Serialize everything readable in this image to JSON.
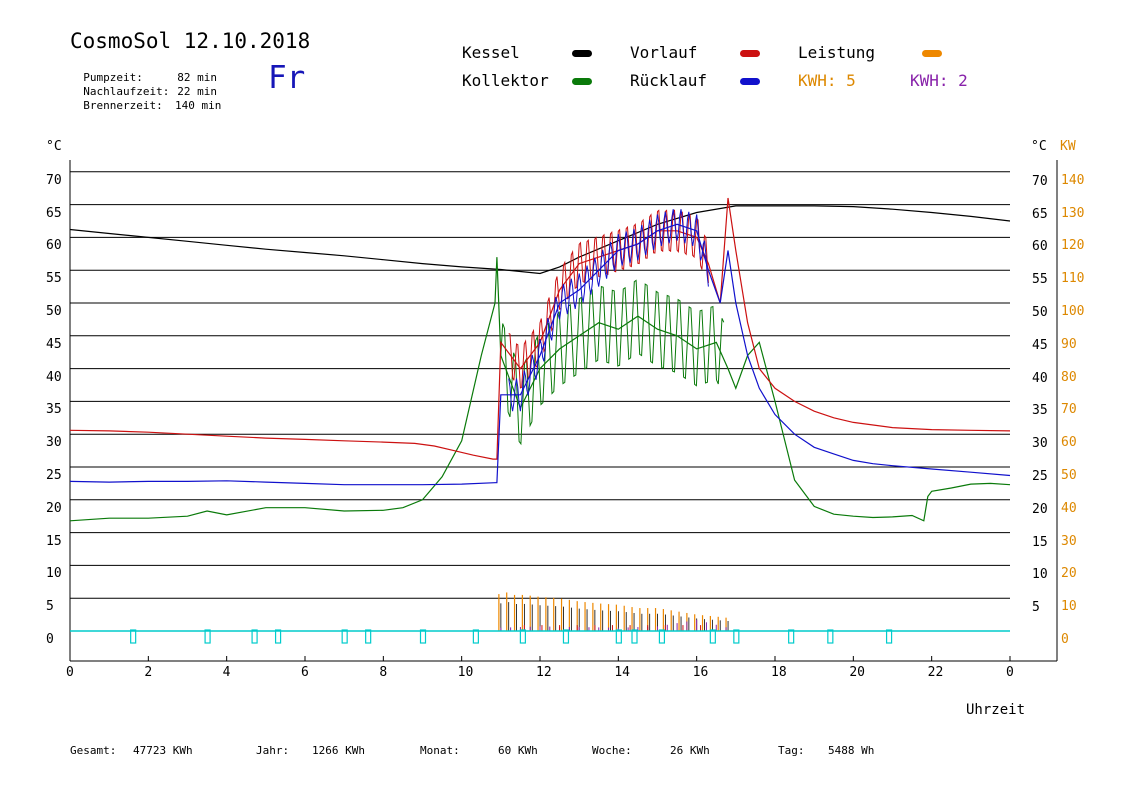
{
  "header": {
    "title": "CosmoSol 12.10.2018",
    "day": "Fr",
    "info": [
      {
        "label": "Pumpzeit:",
        "value": "82 min"
      },
      {
        "label": "Nachlaufzeit:",
        "value": "22 min"
      },
      {
        "label": "Brennerzeit:",
        "value": "140 min"
      }
    ]
  },
  "legend": {
    "kessel": "Kessel",
    "kollektor": "Kollektor",
    "vorlauf": "Vorlauf",
    "ruecklauf": "Rücklauf",
    "leistung": "Leistung",
    "kwh_orange": "KWH: 5",
    "kwh_purple": "KWH: 2"
  },
  "footer": {
    "gesamt_label": "Gesamt:",
    "gesamt_value": "47723 KWh",
    "jahr_label": "Jahr:",
    "jahr_value": "1266 KWh",
    "monat_label": "Monat:",
    "monat_value": "60 KWh",
    "woche_label": "Woche:",
    "woche_value": "26 KWh",
    "tag_label": "Tag:",
    "tag_value": "5488 Wh"
  },
  "colors": {
    "kessel": "#000000",
    "kollektor": "#0a7a0a",
    "vorlauf": "#cc1111",
    "ruecklauf": "#1111cc",
    "leistung": "#ee8800",
    "kwh_purple": "#8822aa",
    "pump": "#00cccc",
    "axis_orange": "#dd8800"
  },
  "chart_data": {
    "type": "line",
    "xlabel": "Uhrzeit",
    "ylabel_left": "°C",
    "ylabel_right": "°C",
    "ylabel_right2": "KW",
    "xlim": [
      0,
      24
    ],
    "ylim": [
      0,
      72
    ],
    "x_tick_labels": [
      "0",
      "2",
      "4",
      "6",
      "8",
      "10",
      "12",
      "14",
      "16",
      "18",
      "20",
      "22",
      "0"
    ],
    "y_ticks_left": [
      0,
      5,
      10,
      15,
      20,
      25,
      30,
      35,
      40,
      45,
      50,
      55,
      60,
      65,
      70
    ],
    "y_ticks_right": [
      5,
      10,
      15,
      20,
      25,
      30,
      35,
      40,
      45,
      50,
      55,
      60,
      65,
      70
    ],
    "y_ticks_right_kw": [
      0,
      10,
      20,
      30,
      40,
      50,
      60,
      70,
      80,
      90,
      100,
      110,
      120,
      130,
      140
    ],
    "series": [
      {
        "name": "Kessel",
        "color": "#000000",
        "x": [
          0,
          1,
          2,
          3,
          4,
          5,
          6,
          7,
          8,
          9,
          10,
          11,
          12,
          12.5,
          13,
          14,
          15,
          16,
          17,
          18,
          19,
          20,
          21,
          22,
          23,
          24
        ],
        "y": [
          61.2,
          60.6,
          60.0,
          59.4,
          58.8,
          58.2,
          57.7,
          57.2,
          56.6,
          56.0,
          55.5,
          55.1,
          54.5,
          55.5,
          57,
          59.5,
          62,
          63.8,
          64.8,
          64.8,
          64.8,
          64.7,
          64.3,
          63.8,
          63.2,
          62.5
        ]
      },
      {
        "name": "Vorlauf",
        "color": "#cc1111",
        "x": [
          0,
          1,
          2,
          3,
          4,
          5,
          6,
          7,
          8,
          8.8,
          9.3,
          9.8,
          10.3,
          10.8,
          10.9,
          11,
          11.5,
          12,
          12.5,
          13,
          13.5,
          14,
          14.5,
          15,
          15.5,
          16,
          16.3,
          16.6,
          16.8,
          17,
          17.3,
          17.6,
          18,
          18.5,
          19,
          19.5,
          20,
          21,
          22,
          23,
          24
        ],
        "y": [
          30.6,
          30.5,
          30.3,
          30.0,
          29.7,
          29.4,
          29.2,
          29.0,
          28.8,
          28.6,
          28.2,
          27.5,
          26.8,
          26.2,
          26.2,
          44,
          40,
          44,
          52,
          56,
          57,
          58,
          59,
          61,
          61,
          60,
          56,
          50,
          66,
          58,
          47,
          40,
          37,
          35,
          33.5,
          32.5,
          31.8,
          31.0,
          30.7,
          30.6,
          30.5
        ]
      },
      {
        "name": "Rücklauf",
        "color": "#1111cc",
        "x": [
          0,
          1,
          2,
          3,
          4,
          5,
          6,
          7,
          8,
          9,
          10,
          10.85,
          10.9,
          11,
          11.5,
          12,
          12.5,
          13,
          13.5,
          14,
          14.5,
          15,
          15.5,
          16,
          16.3,
          16.6,
          16.8,
          17,
          17.3,
          17.6,
          18,
          18.5,
          19,
          19.5,
          20,
          20.5,
          21,
          22,
          23,
          24
        ],
        "y": [
          22.8,
          22.7,
          22.8,
          22.8,
          22.9,
          22.7,
          22.5,
          22.3,
          22.3,
          22.3,
          22.4,
          22.6,
          22.6,
          36,
          36,
          42,
          50,
          52,
          55,
          58,
          59,
          61,
          62,
          61,
          55,
          50,
          58,
          50,
          42,
          37,
          33,
          30,
          28,
          27,
          26,
          25.5,
          25.2,
          24.7,
          24.2,
          23.7
        ]
      },
      {
        "name": "Kollektor",
        "color": "#0a7a0a",
        "x": [
          0,
          1,
          2,
          3,
          3.5,
          4,
          5,
          6,
          7,
          8,
          8.5,
          9,
          9.5,
          10,
          10.5,
          10.85,
          10.9,
          11,
          11.5,
          12,
          12.5,
          13,
          13.5,
          14,
          14.5,
          15,
          15.5,
          16,
          16.5,
          16.8,
          17,
          17.3,
          17.6,
          18,
          18.5,
          19,
          19.5,
          20,
          20.5,
          21,
          21.5,
          21.8,
          21.9,
          22,
          22.5,
          23,
          23.5,
          24
        ],
        "y": [
          16.8,
          17.2,
          17.2,
          17.5,
          18.3,
          17.7,
          18.8,
          18.8,
          18.3,
          18.4,
          18.8,
          20,
          23.5,
          29,
          42,
          50,
          57,
          42,
          34,
          40,
          43,
          45,
          47,
          46,
          48,
          46,
          45,
          43,
          44,
          40,
          37,
          42,
          44,
          35,
          23,
          19,
          17.8,
          17.5,
          17.3,
          17.4,
          17.6,
          16.8,
          20.5,
          21.3,
          21.8,
          22.4,
          22.5,
          22.3
        ]
      },
      {
        "name": "Leistung",
        "color": "#ee8800",
        "x": [
          10.9,
          11.1,
          11.3,
          11.6,
          12,
          12.5,
          13,
          13.5,
          14,
          14.5,
          15,
          15.5,
          16,
          16.5,
          16.8
        ],
        "y": [
          5.5,
          6.0,
          5.5,
          5.5,
          5.2,
          5.0,
          4.5,
          4.2,
          4.0,
          3.5,
          3.5,
          3.0,
          2.5,
          2.2,
          2.0
        ]
      },
      {
        "name": "KWH: 2",
        "color": "#8822aa",
        "x": [
          11,
          12,
          13,
          14,
          15,
          16,
          16.8
        ],
        "y": [
          0.3,
          0.5,
          0.4,
          0.3,
          0.5,
          1.5,
          0.3
        ]
      }
    ],
    "pump_marker_x": [
      1.6,
      3.5,
      4.7,
      5.3,
      7.0,
      7.6,
      9.0,
      10.35,
      11.55,
      12.65,
      14.0,
      14.4,
      15.1,
      16.4,
      17.0,
      18.4,
      19.4,
      20.9
    ]
  }
}
